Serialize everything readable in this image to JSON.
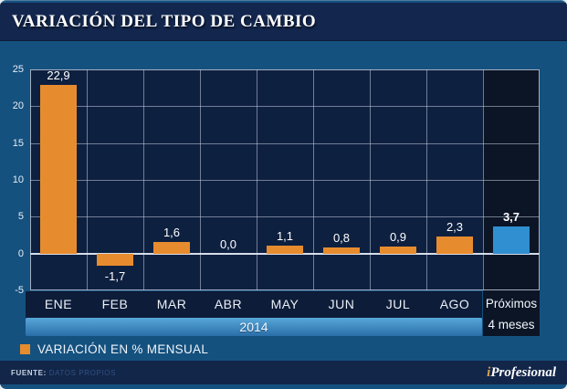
{
  "header": {
    "title": "VARIACIÓN DEL TIPO DE CAMBIO"
  },
  "chart_data": {
    "type": "bar",
    "title": "VARIACIÓN DEL TIPO DE CAMBIO",
    "categories": [
      "ENE",
      "FEB",
      "MAR",
      "ABR",
      "MAY",
      "JUN",
      "JUL",
      "AGO",
      "Próximos 4 meses"
    ],
    "values": [
      22.9,
      -1.7,
      1.6,
      0.0,
      1.1,
      0.8,
      0.9,
      2.3,
      3.7
    ],
    "value_labels": [
      "22,9",
      "-1,7",
      "1,6",
      "0,0",
      "1,1",
      "0,8",
      "0,9",
      "2,3",
      "3,7"
    ],
    "y_ticks": [
      25,
      20,
      15,
      10,
      5,
      0,
      -5
    ],
    "ylim": [
      -5,
      25
    ],
    "xlabel": "",
    "ylabel": "",
    "grid": true,
    "legend_position": "bottom-left",
    "period_label": "2014",
    "forecast_category": "Próximos 4 meses",
    "forecast_lines": [
      "Próximos",
      "4 meses"
    ],
    "bar_color": "#E78C2E",
    "forecast_bar_color": "#2F8FD0",
    "legend": [
      "VARIACIÓN EN % MENSUAL"
    ]
  },
  "legend": {
    "label": "VARIACIÓN EN % MENSUAL"
  },
  "footer": {
    "source_label": "FUENTE:",
    "source_value": "DATOS PROPIOS",
    "logo_i": "i",
    "logo_rest": "Profesional"
  },
  "colors": {
    "frame_blue": "#15517F",
    "header_navy": "#13274E",
    "plot_bg": "#0E2040",
    "forecast_column_bg": "#0B1526",
    "month_strip_bg": "#0D1C39",
    "band_gradient_top": "#57A7DA",
    "band_gradient_bottom": "#2A6EA8",
    "bar_orange": "#E78C2E",
    "bar_blue": "#2F8FD0",
    "footer_navy": "#12264A"
  }
}
